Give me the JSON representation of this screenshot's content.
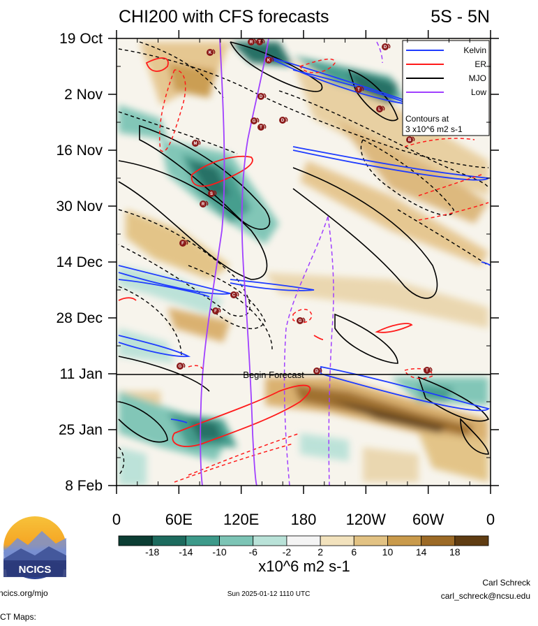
{
  "chart_data": {
    "type": "heatmap",
    "title": "CHI200 with CFS forecasts",
    "subtitle": "5S - 5N",
    "y_ticks": [
      "19 Oct",
      "2 Nov",
      "16 Nov",
      "30 Nov",
      "14 Dec",
      "28 Dec",
      "11 Jan",
      "25 Jan",
      "8 Feb"
    ],
    "x_ticks": [
      "0",
      "60E",
      "120E",
      "180",
      "120W",
      "60W",
      "0"
    ],
    "x_range_deg": [
      0,
      360
    ],
    "y_range": [
      "19 Oct",
      "8 Feb"
    ],
    "forecast_start": "11 Jan",
    "forecast_label": "Begin Forecast",
    "colorbar": {
      "labels": [
        "-18",
        "-14",
        "-10",
        "-6",
        "-2",
        "2",
        "6",
        "10",
        "14",
        "18"
      ],
      "colors": [
        "#0b3d33",
        "#1d6b5e",
        "#3d9a8a",
        "#7cc4b5",
        "#b9e2d8",
        "#f4f4f4",
        "#f2e2bd",
        "#e2c283",
        "#c99a4b",
        "#9c6a26",
        "#5f3c12"
      ],
      "units": "x10^6 m2 s-1"
    },
    "legend": [
      {
        "name": "Kelvin",
        "color": "#1f3cff"
      },
      {
        "name": "ER",
        "color": "#ff1a1a"
      },
      {
        "name": "MJO",
        "color": "#000000"
      },
      {
        "name": "Low",
        "color": "#a040ff"
      }
    ],
    "legend_note": [
      "Contours at",
      "3 x10^6 m2 s-1"
    ],
    "legend_position": "top-right",
    "storm_markers": [
      "T",
      "K",
      "K",
      "D",
      "D",
      "T",
      "L",
      "G",
      "T",
      "D",
      "M",
      "B",
      "S",
      "R",
      "F",
      "C",
      "F",
      "G",
      "G",
      "D",
      "T",
      "R"
    ]
  },
  "footer": {
    "left": "ncics.org/mjo",
    "center": "Sun 2025-01-12 1110 UTC",
    "right_name": "Carl Schreck",
    "right_email": "carl_schreck@ncsu.edu"
  },
  "logo": {
    "text": "NCICS"
  },
  "below": "CT Maps:"
}
